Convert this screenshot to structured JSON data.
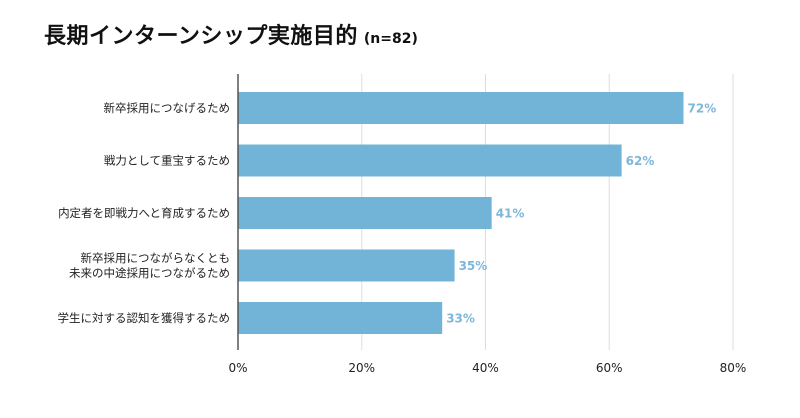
{
  "chart_data": {
    "type": "bar",
    "orientation": "horizontal",
    "title": "長期インターンシップ実施目的",
    "subtitle": "(n=82)",
    "categories": [
      [
        "新卒採用につなげるため"
      ],
      [
        "戦力として重宝するため"
      ],
      [
        "内定者を即戦力へと育成するため"
      ],
      [
        "新卒採用につながらなくとも",
        "未来の中途採用につながるため"
      ],
      [
        "学生に対する認知を獲得するため"
      ]
    ],
    "values": [
      72,
      62,
      41,
      35,
      33
    ],
    "value_labels": [
      "72%",
      "62%",
      "41%",
      "35%",
      "33%"
    ],
    "xlim": [
      0,
      80
    ],
    "xticks": [
      0,
      20,
      40,
      60,
      80
    ],
    "xtick_labels": [
      "0%",
      "20%",
      "40%",
      "60%",
      "80%"
    ],
    "grid": true,
    "bar_color": "#72b4d7",
    "label_color": "#7db7d9",
    "axis_color": "#555555",
    "grid_color": "#dddddd"
  }
}
